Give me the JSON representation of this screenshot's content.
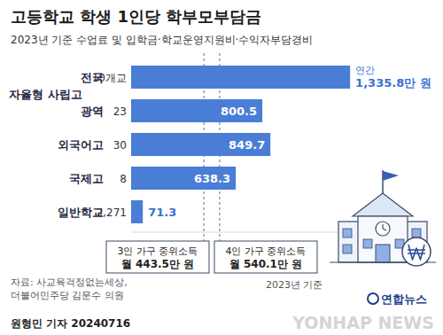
{
  "chart_data": {
    "type": "bar",
    "orientation": "horizontal",
    "title": "고등학교 학생 1인당 학부모부담금",
    "subtitle": "2023년 기준 수업료 및 입학금·학교운영지원비·수익자부담경비",
    "categories": [
      "전국",
      "광역",
      "외국어고",
      "국제고",
      "일반학교"
    ],
    "category_groups": [
      {
        "label": "자율형 사립고",
        "members": [
          0,
          1
        ]
      }
    ],
    "school_counts": [
      "10개교",
      "23",
      "30",
      "8",
      "2,271"
    ],
    "values": [
      1335.8,
      800.5,
      849.7,
      638.3,
      71.3
    ],
    "value_labels": [
      "1,335.8만 원",
      "800.5",
      "849.7",
      "638.3",
      "71.3"
    ],
    "color": "#4a7dd6",
    "xlim": [
      0,
      1600
    ],
    "data_labels": true,
    "tick_labels": false,
    "grid": false,
    "reference_lines": [
      {
        "value": 443.5,
        "label_lines": [
          "3인 가구 중위소득",
          "월 443.5만 원"
        ]
      },
      {
        "value": 540.1,
        "label_lines": [
          "4인 가구 중위소득",
          "월 540.1만 원"
        ]
      }
    ],
    "annotations": {
      "value_prefix": "연간",
      "date_note": "2023년 기준",
      "source": [
        "자료: 사교육걱정없는세상,",
        "더불어민주당 김문수 의원"
      ],
      "byline": "원형민 기자 20240716",
      "logo": "연합뉴스",
      "watermark": "YONHAP NEWS"
    }
  }
}
